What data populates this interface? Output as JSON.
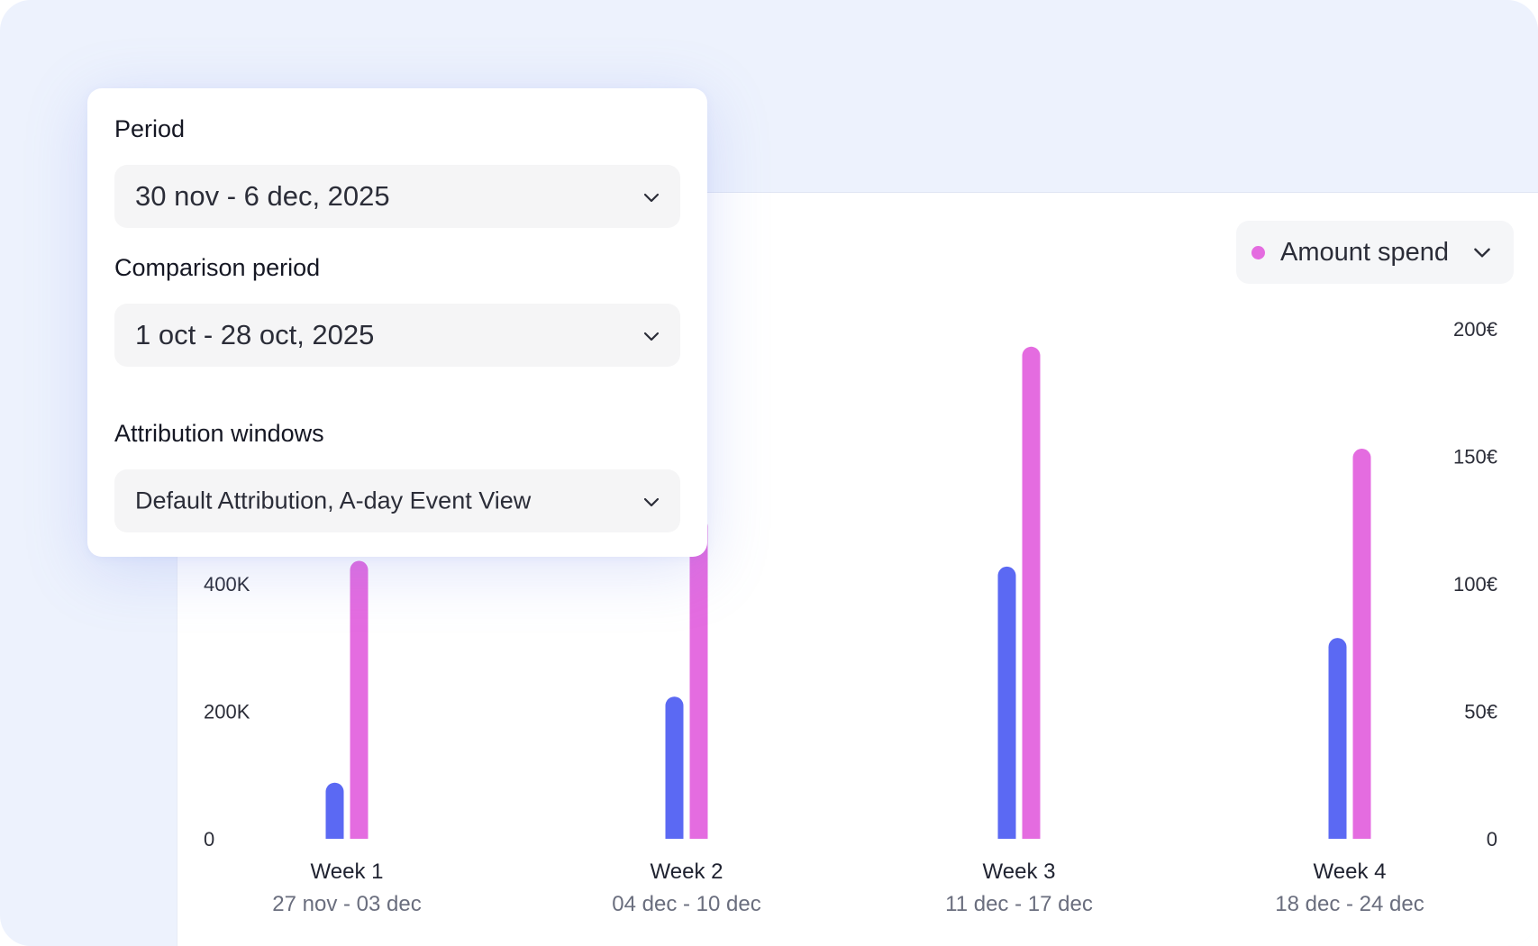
{
  "panel": {
    "period_label": "Period",
    "period_value": "30 nov - 6 dec, 2025",
    "comparison_label": "Comparison period",
    "comparison_value": "1 oct - 28 oct, 2025",
    "attribution_label": "Attribution windows",
    "attribution_value": "Default Attribution, A-day Event View",
    "chevron_icon": "chevron-down-icon"
  },
  "metric_select": {
    "label": "Amount spend",
    "dot_color": "#e46ce0",
    "chevron_icon": "chevron-down-icon"
  },
  "chart_data": {
    "type": "bar",
    "title": "",
    "categories": [
      "Week 1",
      "Week 2",
      "Week 3",
      "Week 4"
    ],
    "category_subtitles": [
      "27 nov - 03 dec",
      "04 dec - 10 dec",
      "11 dec - 17 dec",
      "18 dec - 24 dec"
    ],
    "y_left": {
      "ticks": [
        "0",
        "200K",
        "400K"
      ],
      "tick_values": [
        0,
        200000,
        400000
      ],
      "ylim": [
        0,
        800000
      ]
    },
    "y_right": {
      "ticks": [
        "0",
        "50€",
        "100€",
        "150€",
        "200€"
      ],
      "tick_values": [
        0,
        50,
        100,
        150,
        200
      ],
      "ylim": [
        0,
        200
      ]
    },
    "series": [
      {
        "axis": "left",
        "color": "#5b69f3",
        "values": [
          88000,
          223000,
          427000,
          315000
        ]
      },
      {
        "axis": "right",
        "name": "Amount spend",
        "color": "#e46ce0",
        "values": [
          109,
          126,
          193,
          153
        ]
      }
    ],
    "grid": false,
    "legend": "top-right"
  }
}
